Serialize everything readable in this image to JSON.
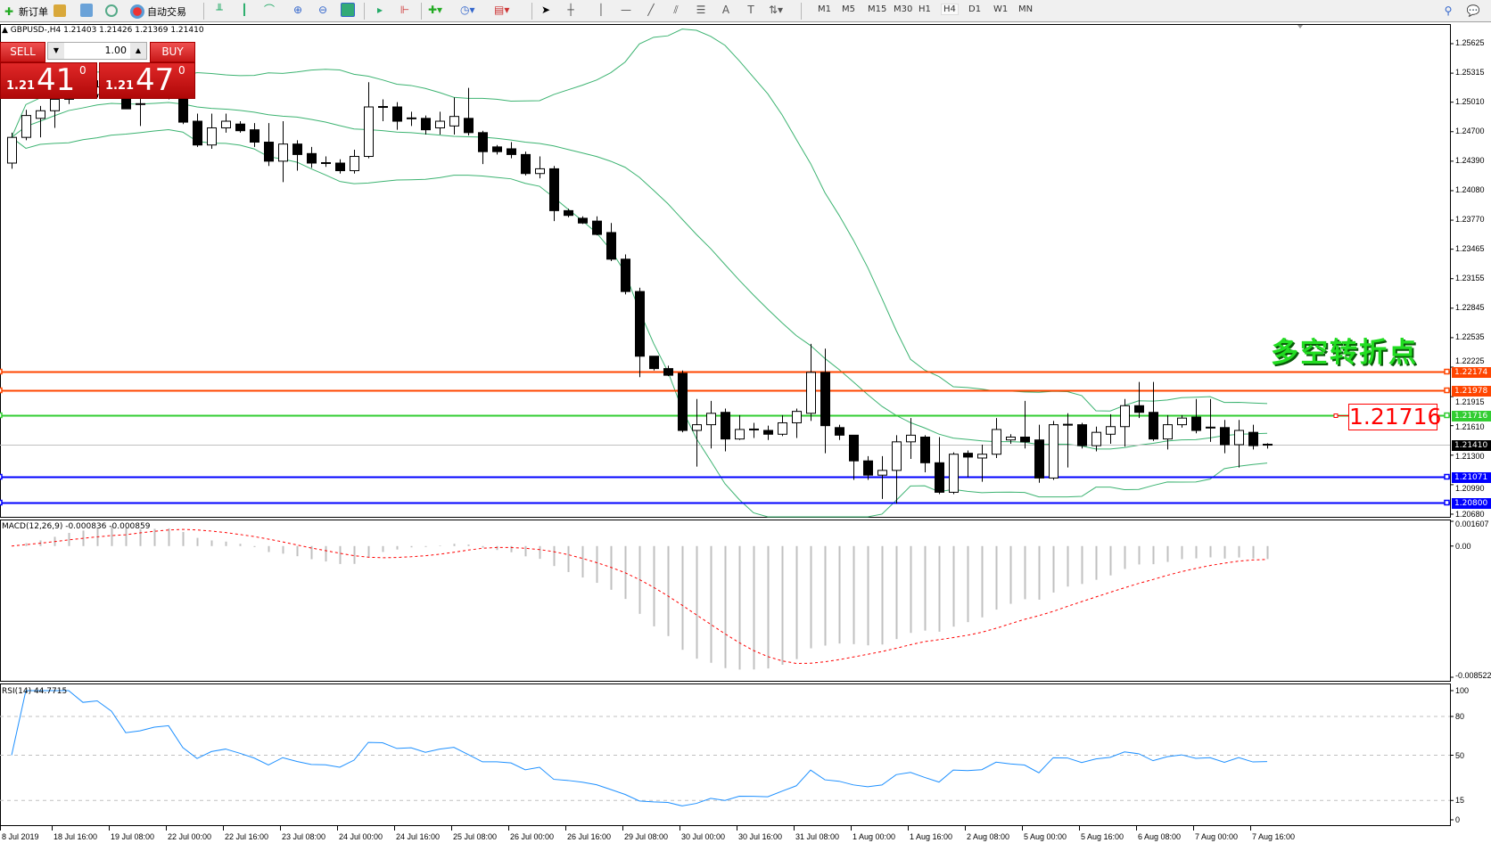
{
  "toolbar": {
    "new_order_label": "新订单",
    "auto_trading_label": "自动交易",
    "timeframes": [
      "M1",
      "M5",
      "M15",
      "M30",
      "H1",
      "H4",
      "D1",
      "W1",
      "MN"
    ],
    "active_timeframe": "H4"
  },
  "chart_header": {
    "symbol": "GBPUSD-,H4",
    "ohlc": "1.21403 1.21426 1.21369 1.21410"
  },
  "trade_panel": {
    "sell_label": "SELL",
    "buy_label": "BUY",
    "lot": "1.00",
    "sell_prefix": "1.21",
    "sell_big": "41",
    "sell_sup": "0",
    "buy_prefix": "1.21",
    "buy_big": "47",
    "buy_sup": "0"
  },
  "annotation": {
    "text": "多空转折点",
    "color": "#22dd22",
    "price_box": "1.21716"
  },
  "chart_data": [
    {
      "type": "candlestick",
      "symbol": "GBPUSD-",
      "timeframe": "H4",
      "ylim": [
        1.2062,
        1.2575
      ],
      "price_ticks": [
        "1.25625",
        "1.25315",
        "1.25010",
        "1.24700",
        "1.24390",
        "1.24080",
        "1.23770",
        "1.23465",
        "1.23155",
        "1.22845",
        "1.22535",
        "1.22225",
        "1.21915",
        "1.21610",
        "1.21300",
        "1.20990",
        "1.20680"
      ],
      "time_labels": [
        "8 Jul 2019",
        "18 Jul 16:00",
        "19 Jul 08:00",
        "22 Jul 00:00",
        "22 Jul 16:00",
        "23 Jul 08:00",
        "24 Jul 00:00",
        "24 Jul 16:00",
        "25 Jul 08:00",
        "26 Jul 00:00",
        "26 Jul 16:00",
        "29 Jul 08:00",
        "30 Jul 00:00",
        "30 Jul 16:00",
        "31 Jul 08:00",
        "1 Aug 00:00",
        "1 Aug 16:00",
        "2 Aug 08:00",
        "5 Aug 00:00",
        "5 Aug 16:00",
        "6 Aug 08:00",
        "7 Aug 00:00",
        "7 Aug 16:00"
      ],
      "ohlc": [
        [
          1.2437,
          1.2469,
          1.2431,
          1.2464
        ],
        [
          1.2464,
          1.2493,
          1.2461,
          1.2487
        ],
        [
          1.2484,
          1.2497,
          1.2464,
          1.2492
        ],
        [
          1.2492,
          1.2509,
          1.2474,
          1.2504
        ],
        [
          1.2504,
          1.2519,
          1.2499,
          1.2514
        ],
        [
          1.2514,
          1.2521,
          1.2505,
          1.2509
        ],
        [
          1.2509,
          1.2524,
          1.2506,
          1.2517
        ],
        [
          1.2517,
          1.2521,
          1.2507,
          1.2511
        ],
        [
          1.2511,
          1.2514,
          1.2494,
          1.2494
        ],
        [
          1.2499,
          1.2509,
          1.2476,
          1.2498
        ],
        [
          1.2511,
          1.2514,
          1.2505,
          1.2507
        ],
        [
          1.2507,
          1.2513,
          1.2504,
          1.2511
        ],
        [
          1.2509,
          1.2514,
          1.2478,
          1.248
        ],
        [
          1.2481,
          1.2489,
          1.2454,
          1.2456
        ],
        [
          1.2456,
          1.2489,
          1.2452,
          1.2474
        ],
        [
          1.2474,
          1.2489,
          1.2469,
          1.2481
        ],
        [
          1.2478,
          1.2481,
          1.2469,
          1.2471
        ],
        [
          1.2472,
          1.2479,
          1.2454,
          1.2459
        ],
        [
          1.2459,
          1.2479,
          1.2434,
          1.2439
        ],
        [
          1.2439,
          1.2481,
          1.2417,
          1.2457
        ],
        [
          1.2457,
          1.2461,
          1.2429,
          1.2446
        ],
        [
          1.2447,
          1.2454,
          1.2432,
          1.2437
        ],
        [
          1.2437,
          1.2444,
          1.2433,
          1.2436
        ],
        [
          1.2437,
          1.2441,
          1.2426,
          1.2429
        ],
        [
          1.2429,
          1.2451,
          1.2426,
          1.2444
        ],
        [
          1.2444,
          1.2522,
          1.2442,
          1.2496
        ],
        [
          1.2496,
          1.2504,
          1.2481,
          1.2495
        ],
        [
          1.2496,
          1.2501,
          1.2472,
          1.2481
        ],
        [
          1.2484,
          1.2491,
          1.2476,
          1.2483
        ],
        [
          1.2484,
          1.2487,
          1.2467,
          1.2472
        ],
        [
          1.2474,
          1.2491,
          1.2467,
          1.2481
        ],
        [
          1.2476,
          1.2506,
          1.2467,
          1.2486
        ],
        [
          1.2484,
          1.2516,
          1.2466,
          1.2469
        ],
        [
          1.2469,
          1.2471,
          1.2436,
          1.2449
        ],
        [
          1.2454,
          1.2456,
          1.2446,
          1.2449
        ],
        [
          1.2452,
          1.2459,
          1.2442,
          1.2446
        ],
        [
          1.2446,
          1.2449,
          1.2424,
          1.2426
        ],
        [
          1.2426,
          1.2444,
          1.2421,
          1.2431
        ],
        [
          1.2431,
          1.2434,
          1.2376,
          1.2387
        ],
        [
          1.2387,
          1.2389,
          1.238,
          1.2382
        ],
        [
          1.2379,
          1.2381,
          1.2373,
          1.2374
        ],
        [
          1.2376,
          1.2381,
          1.2361,
          1.2362
        ],
        [
          1.2364,
          1.2374,
          1.2334,
          1.2336
        ],
        [
          1.2336,
          1.2341,
          1.2299,
          1.2302
        ],
        [
          1.2302,
          1.2306,
          1.2212,
          1.2234
        ],
        [
          1.2234,
          1.2234,
          1.2219,
          1.2221
        ],
        [
          1.2221,
          1.2224,
          1.2213,
          1.2214
        ],
        [
          1.2216,
          1.2219,
          1.2154,
          1.2156
        ],
        [
          1.2156,
          1.2189,
          1.2118,
          1.2162
        ],
        [
          1.2162,
          1.2187,
          1.2137,
          1.2174
        ],
        [
          1.2175,
          1.2179,
          1.2134,
          1.2147
        ],
        [
          1.2147,
          1.2172,
          1.2146,
          1.2157
        ],
        [
          1.2157,
          1.2164,
          1.2148,
          1.2156
        ],
        [
          1.2156,
          1.2161,
          1.2146,
          1.2152
        ],
        [
          1.2152,
          1.2172,
          1.215,
          1.2164
        ],
        [
          1.2164,
          1.2179,
          1.2148,
          1.2176
        ],
        [
          1.2174,
          1.2247,
          1.2166,
          1.2217
        ],
        [
          1.2217,
          1.2242,
          1.2132,
          1.2161
        ],
        [
          1.2159,
          1.2162,
          1.2146,
          1.2151
        ],
        [
          1.2151,
          1.2151,
          1.2104,
          1.2124
        ],
        [
          1.2124,
          1.2129,
          1.2104,
          1.2109
        ],
        [
          1.2109,
          1.2129,
          1.2084,
          1.2114
        ],
        [
          1.2114,
          1.2151,
          1.2079,
          1.2144
        ],
        [
          1.2144,
          1.2169,
          1.2126,
          1.2151
        ],
        [
          1.2149,
          1.2151,
          1.2112,
          1.2122
        ],
        [
          1.2122,
          1.2149,
          1.2089,
          1.2091
        ],
        [
          1.2091,
          1.2133,
          1.2089,
          1.2131
        ],
        [
          1.2132,
          1.2135,
          1.2107,
          1.2128
        ],
        [
          1.2127,
          1.2141,
          1.2102,
          1.2131
        ],
        [
          1.2131,
          1.2169,
          1.2127,
          1.2157
        ],
        [
          1.2146,
          1.2152,
          1.2142,
          1.2149
        ],
        [
          1.2149,
          1.2187,
          1.2137,
          1.2144
        ],
        [
          1.2146,
          1.2162,
          1.2101,
          1.2106
        ],
        [
          1.2106,
          1.2166,
          1.2104,
          1.2162
        ],
        [
          1.2162,
          1.2174,
          1.2117,
          1.2161
        ],
        [
          1.2162,
          1.2164,
          1.2137,
          1.214
        ],
        [
          1.214,
          1.216,
          1.2134,
          1.2154
        ],
        [
          1.2152,
          1.2173,
          1.2142,
          1.216
        ],
        [
          1.216,
          1.2189,
          1.2139,
          1.2182
        ],
        [
          1.2182,
          1.2207,
          1.2169,
          1.2175
        ],
        [
          1.2175,
          1.2207,
          1.2145,
          1.2147
        ],
        [
          1.2147,
          1.2172,
          1.2136,
          1.2162
        ],
        [
          1.2162,
          1.2172,
          1.2159,
          1.2169
        ],
        [
          1.217,
          1.2189,
          1.2153,
          1.2156
        ],
        [
          1.2159,
          1.2189,
          1.2144,
          1.2158
        ],
        [
          1.2159,
          1.2167,
          1.2132,
          1.2141
        ],
        [
          1.2141,
          1.2167,
          1.2117,
          1.2156
        ],
        [
          1.2154,
          1.2162,
          1.2136,
          1.214
        ],
        [
          1.21403,
          1.21426,
          1.21369,
          1.2141
        ]
      ],
      "indicator": {
        "name": "Bollinger Bands",
        "color": "#3cb371"
      },
      "horizontal_lines": [
        {
          "price": "1.22174",
          "color": "#ff4500"
        },
        {
          "price": "1.21978",
          "color": "#ff4500"
        },
        {
          "price": "1.21716",
          "color": "#32cd32"
        },
        {
          "price": "1.21410",
          "color": "#000000",
          "line_color": "#c0c0c0"
        },
        {
          "price": "1.21071",
          "color": "#0000ff"
        },
        {
          "price": "1.20800",
          "color": "#0000ff"
        }
      ]
    },
    {
      "type": "bar+line",
      "title": "MACD(12,26,9) -0.000836 -0.000859",
      "ticks": [
        "0.001607",
        "0.00",
        "-0.008522"
      ],
      "ylim": [
        -0.008522,
        0.001607
      ],
      "histogram_color": "#c0c0c0",
      "signal_color": "#ff0000"
    },
    {
      "type": "line",
      "title": "RSI(14) 44.7715",
      "ticks": [
        "100",
        "80",
        "50",
        "15",
        "0"
      ],
      "levels": [
        80,
        50,
        15
      ],
      "ylim": [
        0,
        100
      ],
      "color": "#1e90ff"
    }
  ]
}
